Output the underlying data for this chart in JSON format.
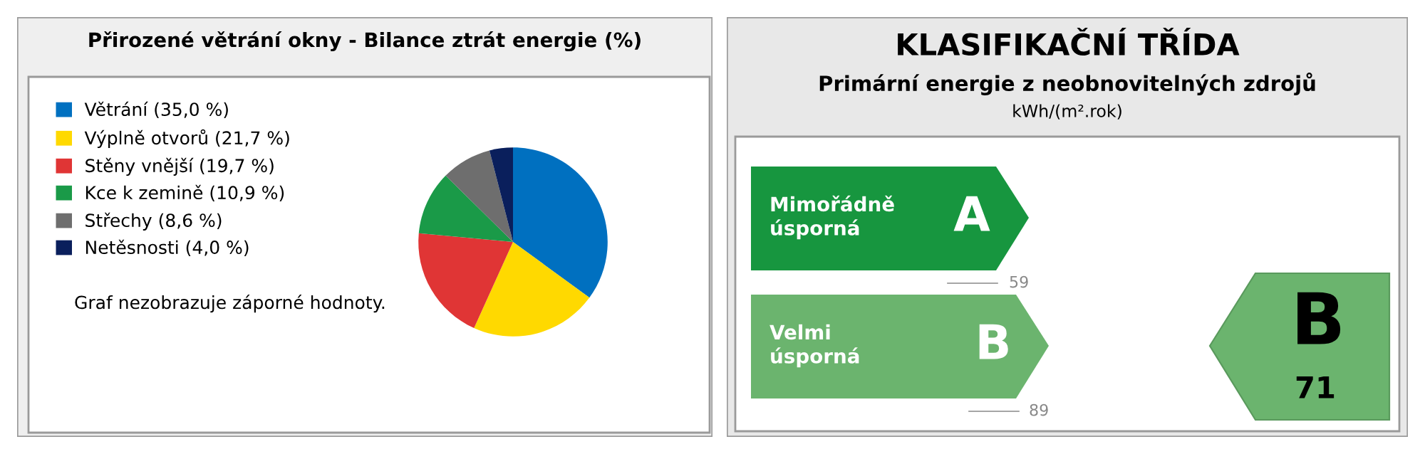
{
  "chart_data": [
    {
      "type": "pie",
      "title": "Přirozené větrání okny - Bilance ztrát energie (%)",
      "categories": [
        "Větrání (35,0 %)",
        "Výplně otvorů (21,7 %)",
        "Stěny vnější (19,7 %)",
        "Kce k zemině (10,9 %)",
        "Střechy (8,6 %)",
        "Netěsnosti (4,0 %)"
      ],
      "values": [
        35.0,
        21.7,
        19.7,
        10.9,
        8.6,
        4.0
      ],
      "colors": [
        "#0070c0",
        "#ffd900",
        "#e03535",
        "#1a9a48",
        "#6e6e6e",
        "#0a1f5c"
      ],
      "legend": "left",
      "annotations": [
        "Graf nezobrazuje záporné hodnoty."
      ]
    },
    {
      "type": "other",
      "title": "KLASIFIKAČNÍ TŘÍDA",
      "subtitle": "Primární energie z neobnovitelných zdrojů",
      "annotations": [
        "kWh/(m².rok)",
        "Mimořádně\núsporná",
        "A",
        "59",
        "Velmi\núsporná",
        "B",
        "89",
        "B",
        "71"
      ]
    }
  ]
}
